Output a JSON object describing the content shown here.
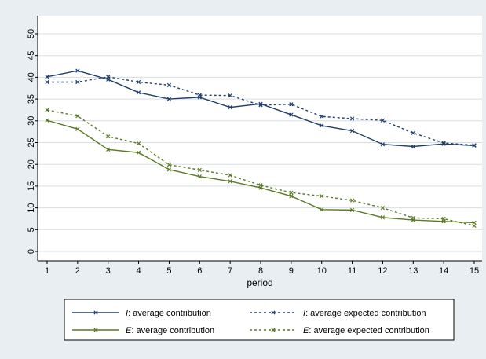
{
  "chart_data": {
    "type": "line",
    "title": "",
    "xlabel": "period",
    "ylabel": "",
    "x": [
      1,
      2,
      3,
      4,
      5,
      6,
      7,
      8,
      9,
      10,
      11,
      12,
      13,
      14,
      15
    ],
    "xlim": [
      1,
      15
    ],
    "ylim": [
      0,
      50
    ],
    "y_ticks": [
      0,
      5,
      10,
      15,
      20,
      25,
      30,
      35,
      40,
      45,
      50
    ],
    "grid": true,
    "legend_position": "bottom",
    "series": [
      {
        "name_prefix": "I",
        "name_suffix": ": average contribution",
        "color": "#1f3f6b",
        "style": "solid",
        "values": [
          40.1,
          41.5,
          39.5,
          36.5,
          35.0,
          35.4,
          33.1,
          33.9,
          31.4,
          28.9,
          27.7,
          24.6,
          24.1,
          24.7,
          24.3
        ]
      },
      {
        "name_prefix": "I",
        "name_suffix": ": average expected contribution",
        "color": "#1f3f6b",
        "style": "dotted",
        "values": [
          38.9,
          38.9,
          40.1,
          38.9,
          38.2,
          35.9,
          35.8,
          33.6,
          33.8,
          31.0,
          30.5,
          30.1,
          27.2,
          24.9,
          24.4
        ]
      },
      {
        "name_prefix": "E",
        "name_suffix": ": average contribution",
        "color": "#5a7a26",
        "style": "solid",
        "values": [
          30.1,
          28.1,
          23.4,
          22.7,
          18.8,
          17.2,
          16.1,
          14.6,
          12.7,
          9.6,
          9.5,
          7.8,
          7.2,
          6.9,
          6.6
        ]
      },
      {
        "name_prefix": "E",
        "name_suffix": ": average expected contribution",
        "color": "#5a7a26",
        "style": "dotted",
        "values": [
          32.5,
          31.1,
          26.4,
          24.8,
          19.9,
          18.7,
          17.5,
          15.2,
          13.5,
          12.7,
          11.7,
          10.0,
          7.7,
          7.5,
          5.9
        ]
      }
    ]
  },
  "colors": {
    "background": "#e9eef3",
    "plot_area": "#ffffff",
    "grid": "#d8dde3"
  }
}
